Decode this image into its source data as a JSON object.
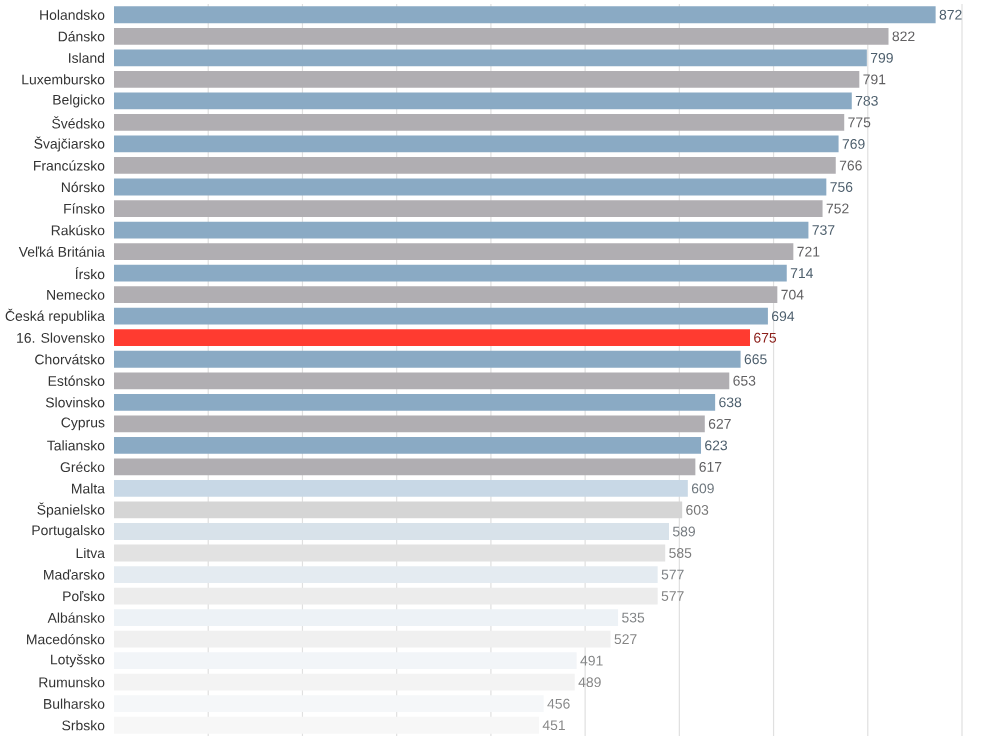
{
  "chart_data": {
    "type": "bar",
    "orientation": "horizontal",
    "categories": [
      "Holandsko",
      "Dánsko",
      "Island",
      "Luxembursko",
      "Belgicko",
      "Švédsko",
      "Švajčiarsko",
      "Francúzsko",
      "Nórsko",
      "Fínsko",
      "Rakúsko",
      "Veľká Británia",
      "Írsko",
      "Nemecko",
      "Česká republika",
      "16. Slovensko",
      "Chorvátsko",
      "Estónsko",
      "Slovinsko",
      "Cyprus",
      "Taliansko",
      "Grécko",
      "Malta",
      "Španielsko",
      "Portugalsko",
      "Litva",
      "Maďarsko",
      "Poľsko",
      "Albánsko",
      "Macedónsko",
      "Lotyšsko",
      "Rumunsko",
      "Bulharsko",
      "Srbsko"
    ],
    "values": [
      872,
      822,
      799,
      791,
      783,
      775,
      769,
      766,
      756,
      752,
      737,
      721,
      714,
      704,
      694,
      675,
      665,
      653,
      638,
      627,
      623,
      617,
      609,
      603,
      589,
      585,
      577,
      577,
      535,
      527,
      491,
      489,
      456,
      451
    ],
    "colors": [
      "#8aaac4",
      "#b0aeb2",
      "#8aaac4",
      "#b0aeb2",
      "#8aaac4",
      "#b0aeb2",
      "#8aaac4",
      "#b0aeb2",
      "#8aaac4",
      "#b0aeb2",
      "#8aaac4",
      "#b0aeb2",
      "#8aaac4",
      "#b0aeb2",
      "#8aaac4",
      "#ff3b30",
      "#8aaac4",
      "#b0aeb2",
      "#8aaac4",
      "#b0aeb2",
      "#8aaac4",
      "#b0aeb2",
      "#c8d8e6",
      "#d5d5d5",
      "#d8e2ea",
      "#e2e2e2",
      "#e4ebf1",
      "#ececec",
      "#edf2f6",
      "#f0f0f0",
      "#f2f5f8",
      "#f3f3f3",
      "#f5f7f9",
      "#f7f7f7"
    ],
    "xlim": [
      0,
      900
    ],
    "xticks": [
      {
        "value": 100,
        "label": null
      },
      {
        "value": 200,
        "label": null
      },
      {
        "value": 300,
        "label": null
      },
      {
        "value": 400,
        "label": null
      },
      {
        "value": 500,
        "label": null
      },
      {
        "value": 600,
        "label": null
      },
      {
        "value": 700,
        "label": null
      },
      {
        "value": 800,
        "label": null
      },
      {
        "value": 900,
        "label": null
      }
    ],
    "grid": "x",
    "data_labels": true,
    "tick_labels": "y"
  }
}
